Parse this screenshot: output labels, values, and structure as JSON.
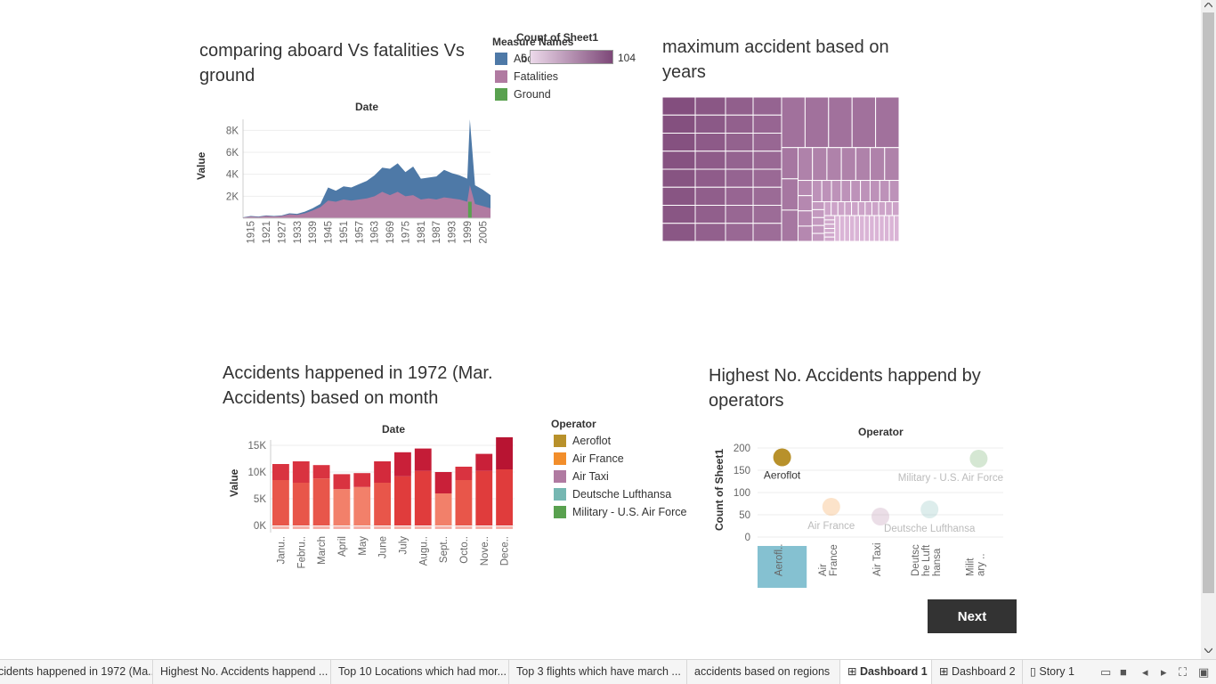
{
  "colors": {
    "aboard": "#4e79a7",
    "fatalities": "#b07aa1",
    "ground": "#59a14f",
    "aeroflot": "#b8912b",
    "air_france": "#f28e2b",
    "air_taxi": "#b07aa1",
    "lufthansa": "#76b7b2",
    "military": "#59a14f"
  },
  "chart1": {
    "title": "comparing aboard Vs fatalities Vs ground",
    "x_title": "Date",
    "y_title": "Value",
    "y_ticks": [
      "8K",
      "6K",
      "4K",
      "2K"
    ],
    "x_ticks": [
      "1915",
      "1921",
      "1927",
      "1933",
      "1939",
      "1945",
      "1951",
      "1957",
      "1963",
      "1969",
      "1975",
      "1981",
      "1987",
      "1993",
      "1999",
      "2005"
    ]
  },
  "legend1": {
    "title": "Measure Names",
    "items": [
      "Aboard",
      "Fatalities",
      "Ground"
    ]
  },
  "legend_color": {
    "title": "Count of Sheet1",
    "min": "6",
    "max": "104"
  },
  "chart2": {
    "title": "maximum accident based on years"
  },
  "chart3": {
    "title": "Accidents happened in 1972 (Mar. Accidents) based on month",
    "x_title": "Date",
    "y_title": "Value",
    "y_ticks": [
      "15K",
      "10K",
      "5K",
      "0K"
    ],
    "months": [
      "Janu..",
      "Febru..",
      "March",
      "April",
      "May",
      "June",
      "July",
      "Augu..",
      "Sept..",
      "Octo..",
      "Nove..",
      "Dece.."
    ]
  },
  "legend3": {
    "title": "Operator",
    "items": [
      "Aeroflot",
      "Air France",
      "Air Taxi",
      "Deutsche Lufthansa",
      "Military - U.S. Air Force"
    ]
  },
  "chart4": {
    "title": "Highest No. Accidents happend by operators",
    "x_title": "Operator",
    "y_title": "Count of Sheet1",
    "y_ticks": [
      "200",
      "150",
      "100",
      "50",
      "0"
    ],
    "x_labels": [
      "Aerofl..",
      "Air\nFrance",
      "Air Taxi",
      "Deutsc\nhe Luft\nhansa",
      "Milit\nary .."
    ],
    "point_labels": [
      "Aeroflot",
      "Air France",
      "",
      "Deutsche Lufthansa",
      "Military - U.S. Air Force"
    ]
  },
  "chart_data": [
    {
      "type": "area",
      "title": "comparing aboard Vs fatalities Vs ground",
      "xlabel": "Date",
      "ylabel": "Value",
      "ylim": [
        0,
        9000
      ],
      "x": [
        1912,
        1915,
        1918,
        1921,
        1924,
        1927,
        1930,
        1933,
        1936,
        1939,
        1942,
        1945,
        1948,
        1951,
        1954,
        1957,
        1960,
        1963,
        1966,
        1969,
        1972,
        1975,
        1978,
        1981,
        1984,
        1987,
        1990,
        1993,
        1996,
        1999,
        2000,
        2002,
        2005,
        2008
      ],
      "series": [
        {
          "name": "Aboard",
          "values": [
            80,
            200,
            150,
            250,
            200,
            250,
            450,
            400,
            600,
            900,
            1300,
            2800,
            2500,
            2900,
            2800,
            3100,
            3400,
            3900,
            4600,
            4500,
            5000,
            4200,
            4700,
            3600,
            3700,
            3800,
            4400,
            4100,
            3900,
            3600,
            9000,
            3000,
            2600,
            2100
          ]
        },
        {
          "name": "Fatalities",
          "values": [
            60,
            150,
            100,
            200,
            150,
            200,
            350,
            300,
            450,
            700,
            1000,
            1600,
            1500,
            1700,
            1600,
            1700,
            1800,
            2000,
            2400,
            2100,
            2400,
            2000,
            2100,
            1700,
            1800,
            1700,
            1900,
            1800,
            1700,
            1500,
            3000,
            1300,
            1100,
            900
          ]
        },
        {
          "name": "Ground",
          "values": [
            0,
            0,
            0,
            0,
            0,
            0,
            0,
            0,
            0,
            0,
            0,
            0,
            0,
            0,
            0,
            0,
            0,
            0,
            0,
            0,
            0,
            0,
            0,
            0,
            0,
            0,
            0,
            0,
            0,
            0,
            1500,
            0,
            0,
            0
          ]
        }
      ]
    },
    {
      "type": "heatmap",
      "title": "maximum accident based on years",
      "color_legend": "Count of Sheet1",
      "range": [
        6,
        104
      ]
    },
    {
      "type": "bar",
      "title": "Accidents happened in 1972 (Mar. Accidents) based on month",
      "xlabel": "Date",
      "ylabel": "Value",
      "ylim": [
        -500,
        16000
      ],
      "categories": [
        "Janu..",
        "Febru..",
        "March",
        "April",
        "May",
        "June",
        "July",
        "Augu..",
        "Sept..",
        "Octo..",
        "Nove..",
        "Dece.."
      ],
      "series": [
        {
          "name": "lower",
          "values": [
            8500,
            8000,
            8800,
            6800,
            7200,
            8000,
            9200,
            10200,
            6000,
            8500,
            10200,
            10500
          ]
        },
        {
          "name": "upper",
          "values": [
            3000,
            4000,
            2500,
            2800,
            2600,
            4000,
            4500,
            4200,
            4000,
            2500,
            3200,
            6000
          ]
        }
      ]
    },
    {
      "type": "scatter",
      "title": "Highest No. Accidents happend by operators",
      "xlabel": "Operator",
      "ylabel": "Count of Sheet1",
      "ylim": [
        0,
        200
      ],
      "categories": [
        "Aeroflot",
        "Air France",
        "Air Taxi",
        "Deutsche Lufthansa",
        "Military - U.S. Air Force"
      ],
      "values": [
        179,
        68,
        46,
        62,
        176
      ]
    }
  ],
  "next_label": "Next",
  "tabs": [
    {
      "label": "cidents happened in 1972 (Ma...",
      "active": false
    },
    {
      "label": "Highest No. Accidents happend ...",
      "active": false
    },
    {
      "label": "Top 10 Locations which had mor...",
      "active": false
    },
    {
      "label": "Top 3 flights which have march ...",
      "active": false
    },
    {
      "label": "accidents based on regions",
      "active": false
    },
    {
      "label": "Dashboard 1",
      "active": true
    },
    {
      "label": "Dashboard 2",
      "active": false
    },
    {
      "label": "Story 1",
      "active": false
    }
  ]
}
